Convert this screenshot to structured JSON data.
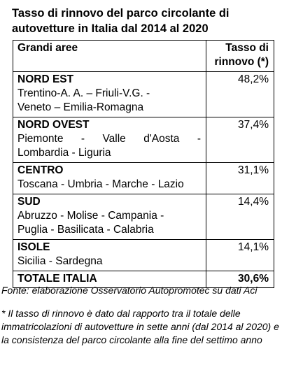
{
  "title": "Tasso di rinnovo del parco circolante di autovetture in Italia dal 2014 al 2020",
  "table": {
    "header_area": "Grandi aree",
    "header_rate_line1": "Tasso di",
    "header_rate_line2": "rinnovo (*)",
    "rows": [
      {
        "name": "NORD EST",
        "regions_line1": "Trentino-A. A. – Friuli-V.G. -",
        "regions_line2": "Veneto – Emilia-Romagna",
        "rate": "48,2%"
      },
      {
        "name": "NORD OVEST",
        "regions_line1": "Piemonte - Valle d'Aosta -",
        "regions_line2": "Lombardia - Liguria",
        "rate": "37,4%"
      },
      {
        "name": "CENTRO",
        "regions_line1": "Toscana - Umbria - Marche - Lazio",
        "regions_line2": "",
        "rate": "31,1%"
      },
      {
        "name": "SUD",
        "regions_line1": "Abruzzo - Molise - Campania -",
        "regions_line2": "Puglia - Basilicata - Calabria",
        "rate": "14,4%"
      },
      {
        "name": "ISOLE",
        "regions_line1": "Sicilia - Sardegna",
        "regions_line2": "",
        "rate": "14,1%"
      }
    ],
    "total_label": "TOTALE ITALIA",
    "total_rate": "30,6%"
  },
  "source": "Fonte: elaborazione Osservatorio Autopromotec su dati Aci",
  "note": "* Il tasso di rinnovo è dato dal rapporto tra il totale delle immatricolazioni di autovetture in sette anni (dal 2014 al 2020) e la consistenza del parco circolante alla fine del settimo anno"
}
